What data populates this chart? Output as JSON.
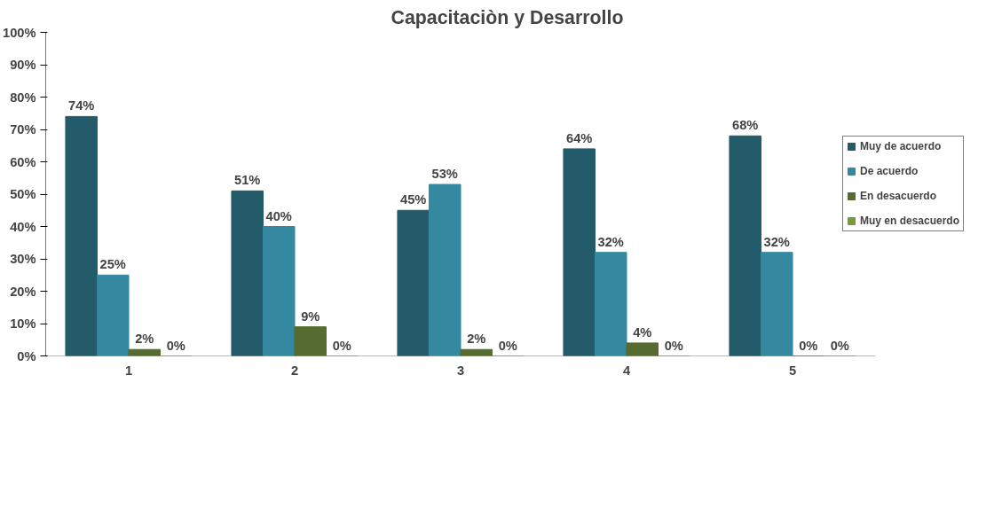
{
  "chart_data": {
    "type": "bar",
    "title": "Capacitaciòn y Desarrollo",
    "categories": [
      "1",
      "2",
      "3",
      "4",
      "5"
    ],
    "series": [
      {
        "name": "Muy de acuerdo",
        "color": "#235b6a",
        "values": [
          74,
          51,
          45,
          64,
          68
        ],
        "value_labels": [
          "74%",
          "51%",
          "45%",
          "64%",
          "68%"
        ]
      },
      {
        "name": "De acuerdo",
        "color": "#3488a0",
        "values": [
          25,
          40,
          53,
          32,
          32
        ],
        "value_labels": [
          "25%",
          "40%",
          "53%",
          "32%",
          "32%"
        ]
      },
      {
        "name": "En desacuerdo",
        "color": "#556b2f",
        "values": [
          2,
          9,
          2,
          4,
          0
        ],
        "value_labels": [
          "2%",
          "9%",
          "2%",
          "4%",
          "0%"
        ]
      },
      {
        "name": "Muy en desacuerdo",
        "color": "#7a9a3a",
        "values": [
          0,
          0,
          0,
          0,
          0
        ],
        "value_labels": [
          "0%",
          "0%",
          "0%",
          "0%",
          "0%"
        ]
      }
    ],
    "ylim": [
      0,
      100
    ],
    "yticks": [
      {
        "value": 0,
        "label": "0%"
      },
      {
        "value": 10,
        "label": "10%"
      },
      {
        "value": 20,
        "label": "20%"
      },
      {
        "value": 30,
        "label": "30%"
      },
      {
        "value": 40,
        "label": "40%"
      },
      {
        "value": 50,
        "label": "50%"
      },
      {
        "value": 60,
        "label": "60%"
      },
      {
        "value": 70,
        "label": "70%"
      },
      {
        "value": 80,
        "label": "80%"
      },
      {
        "value": 90,
        "label": "90%"
      },
      {
        "value": 100,
        "label": "100%"
      }
    ],
    "grid": false,
    "legend": "right"
  }
}
